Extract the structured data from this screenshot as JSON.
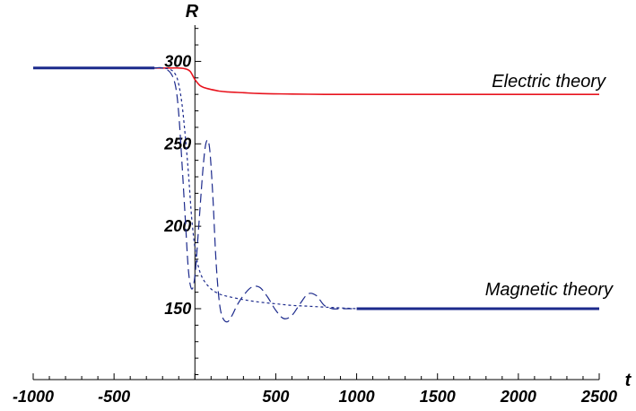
{
  "chart_data": {
    "type": "line",
    "xlabel": "t",
    "ylabel": "R",
    "xlim": [
      -1000,
      2500
    ],
    "ylim": [
      107,
      322
    ],
    "x_ticks": [
      -1000,
      -500,
      500,
      1000,
      1500,
      2000,
      2500
    ],
    "y_ticks": [
      150,
      200,
      250,
      300
    ],
    "grid": false,
    "annotations": [
      "Electric theory",
      "Magnetic theory"
    ],
    "colors": {
      "electric": "#e8141e",
      "magnetic": "#1c2a8c",
      "axis": "#000000"
    },
    "series": [
      {
        "style": "solid",
        "color": "electric",
        "x": [
          -1000,
          -250,
          -150,
          -100,
          -60,
          -30,
          0,
          30,
          60,
          100,
          150,
          200,
          300,
          400,
          600,
          800,
          1000,
          1500,
          2000,
          2500
        ],
        "y": [
          296,
          296,
          296,
          296,
          295.5,
          294,
          289,
          285.5,
          284,
          283,
          282,
          281.5,
          281,
          280.5,
          280.2,
          280,
          280,
          280,
          280,
          280
        ]
      },
      {
        "style": "solid",
        "color": "magnetic",
        "x": [
          -1000,
          -250
        ],
        "y": [
          296,
          296
        ]
      },
      {
        "style": "short-dash",
        "color": "magnetic",
        "x": [
          -250,
          -200,
          -150,
          -120,
          -100,
          -80,
          -60,
          -40,
          -20,
          0,
          20,
          50,
          100,
          150,
          200,
          300,
          400,
          500,
          600,
          700,
          800,
          900,
          1000
        ],
        "y": [
          296,
          296,
          295,
          292,
          286,
          274,
          255,
          232,
          205,
          187,
          176,
          168,
          162,
          159,
          157.5,
          155.5,
          154,
          153,
          152,
          151.5,
          151,
          150.5,
          150
        ]
      },
      {
        "style": "long-dash",
        "color": "magnetic",
        "x": [
          -250,
          -200,
          -150,
          -120,
          -100,
          -80,
          -60,
          -40,
          -20,
          0,
          20,
          50,
          70,
          90,
          110,
          130,
          150,
          170,
          200,
          230,
          260,
          300,
          350,
          400,
          450,
          500,
          550,
          600,
          650,
          700,
          750,
          800,
          850,
          900,
          950,
          1000
        ],
        "y": [
          296,
          296,
          293,
          285,
          268,
          238,
          205,
          173,
          162,
          170,
          195,
          235,
          251,
          248,
          220,
          180,
          155,
          145,
          142,
          146,
          152,
          158,
          163,
          163,
          157,
          149,
          144,
          146,
          153,
          159,
          158,
          152,
          150,
          150,
          150,
          150
        ]
      },
      {
        "style": "solid",
        "color": "magnetic",
        "x": [
          1000,
          2500
        ],
        "y": [
          150,
          150
        ]
      }
    ]
  }
}
